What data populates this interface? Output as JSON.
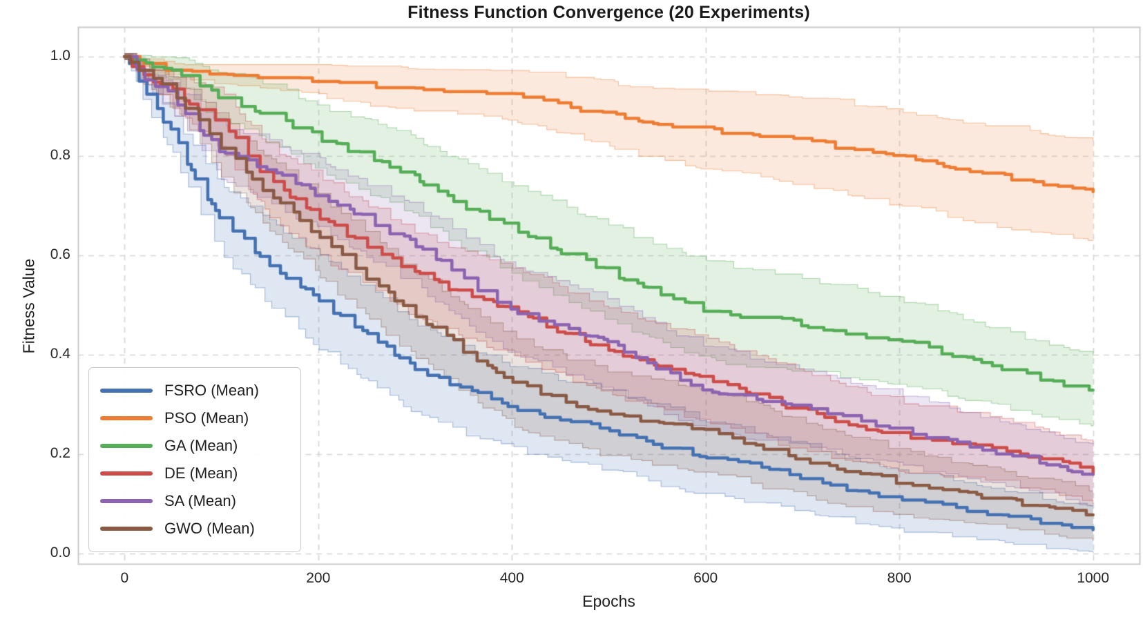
{
  "chart_data": {
    "type": "line",
    "title": "Fitness Function Convergence (20 Experiments)",
    "xlabel": "Epochs",
    "ylabel": "Fitness Value",
    "xlim": [
      -48,
      1048
    ],
    "ylim": [
      -0.0208,
      1.0597
    ],
    "grid": true,
    "grid_color": "#d6d6d6",
    "spine_color": "#c9c9c9",
    "legend_position": "lower-left",
    "x_ticks": [
      {
        "value": 0,
        "label": "0"
      },
      {
        "value": 200,
        "label": "200"
      },
      {
        "value": 400,
        "label": "400"
      },
      {
        "value": 600,
        "label": "600"
      },
      {
        "value": 800,
        "label": "800"
      },
      {
        "value": 1000,
        "label": "1000"
      }
    ],
    "y_ticks": [
      {
        "value": 1.0,
        "label": "1.0"
      },
      {
        "value": 0.8,
        "label": "0.8"
      },
      {
        "value": 0.6,
        "label": "0.6"
      },
      {
        "value": 0.4,
        "label": "0.4"
      },
      {
        "value": 0.2,
        "label": "0.2"
      },
      {
        "value": 0.0,
        "label": "0.0"
      }
    ],
    "anchor_epochs": [
      0,
      25,
      50,
      75,
      100,
      150,
      200,
      250,
      300,
      350,
      400,
      450,
      500,
      550,
      600,
      650,
      700,
      750,
      800,
      850,
      900,
      950,
      1000
    ],
    "series": [
      {
        "name": "FSRO",
        "legend_label": "FSRO (Mean)",
        "color": "#4471b2",
        "mean_values": [
          1.0,
          0.915,
          0.845,
          0.75,
          0.67,
          0.585,
          0.51,
          0.44,
          0.375,
          0.33,
          0.295,
          0.27,
          0.25,
          0.22,
          0.195,
          0.175,
          0.155,
          0.13,
          0.11,
          0.095,
          0.08,
          0.065,
          0.05
        ],
        "band": {
          "epochs": [
            0,
            100,
            200,
            400,
            600,
            800,
            1000
          ],
          "halfwidths": [
            0.006,
            0.07,
            0.095,
            0.085,
            0.075,
            0.06,
            0.045
          ]
        }
      },
      {
        "name": "PSO",
        "legend_label": "PSO (Mean)",
        "color": "#ee7d33",
        "mean_values": [
          1.0,
          0.985,
          0.975,
          0.972,
          0.968,
          0.962,
          0.955,
          0.945,
          0.937,
          0.933,
          0.924,
          0.905,
          0.882,
          0.868,
          0.855,
          0.845,
          0.833,
          0.815,
          0.797,
          0.778,
          0.762,
          0.745,
          0.73
        ],
        "band": {
          "epochs": [
            0,
            100,
            200,
            400,
            600,
            800,
            1000
          ],
          "halfwidths": [
            0.005,
            0.02,
            0.035,
            0.05,
            0.08,
            0.095,
            0.105
          ]
        }
      },
      {
        "name": "GA",
        "legend_label": "GA (Mean)",
        "color": "#56ad57",
        "mean_values": [
          1.0,
          0.985,
          0.975,
          0.945,
          0.92,
          0.885,
          0.838,
          0.8,
          0.758,
          0.7,
          0.655,
          0.61,
          0.567,
          0.525,
          0.492,
          0.475,
          0.462,
          0.445,
          0.428,
          0.4,
          0.376,
          0.352,
          0.328
        ],
        "band": {
          "epochs": [
            0,
            100,
            200,
            400,
            600,
            800,
            1000
          ],
          "halfwidths": [
            0.006,
            0.05,
            0.065,
            0.09,
            0.1,
            0.085,
            0.07
          ]
        }
      },
      {
        "name": "DE",
        "legend_label": "DE (Mean)",
        "color": "#cc4c49",
        "mean_values": [
          1.0,
          0.955,
          0.93,
          0.9,
          0.87,
          0.75,
          0.678,
          0.62,
          0.563,
          0.523,
          0.49,
          0.448,
          0.41,
          0.378,
          0.35,
          0.318,
          0.288,
          0.262,
          0.238,
          0.225,
          0.213,
          0.19,
          0.165
        ],
        "band": {
          "epochs": [
            0,
            100,
            200,
            400,
            600,
            800,
            1000
          ],
          "halfwidths": [
            0.006,
            0.06,
            0.08,
            0.09,
            0.085,
            0.07,
            0.06
          ]
        }
      },
      {
        "name": "SA",
        "legend_label": "SA (Mean)",
        "color": "#8c63b0",
        "mean_values": [
          1.0,
          0.945,
          0.92,
          0.86,
          0.81,
          0.77,
          0.723,
          0.672,
          0.622,
          0.553,
          0.492,
          0.455,
          0.423,
          0.375,
          0.332,
          0.312,
          0.298,
          0.272,
          0.25,
          0.228,
          0.205,
          0.182,
          0.158
        ],
        "band": {
          "epochs": [
            0,
            100,
            200,
            400,
            600,
            800,
            1000
          ],
          "halfwidths": [
            0.006,
            0.055,
            0.07,
            0.09,
            0.085,
            0.07,
            0.06
          ]
        }
      },
      {
        "name": "GWO",
        "legend_label": "GWO (Mean)",
        "color": "#8a5a44",
        "mean_values": [
          1.0,
          0.96,
          0.93,
          0.875,
          0.818,
          0.722,
          0.64,
          0.558,
          0.482,
          0.41,
          0.35,
          0.31,
          0.283,
          0.266,
          0.25,
          0.22,
          0.192,
          0.167,
          0.145,
          0.128,
          0.112,
          0.095,
          0.08
        ],
        "band": {
          "epochs": [
            0,
            100,
            200,
            400,
            600,
            800,
            1000
          ],
          "halfwidths": [
            0.006,
            0.06,
            0.08,
            0.09,
            0.085,
            0.065,
            0.05
          ]
        }
      }
    ]
  }
}
